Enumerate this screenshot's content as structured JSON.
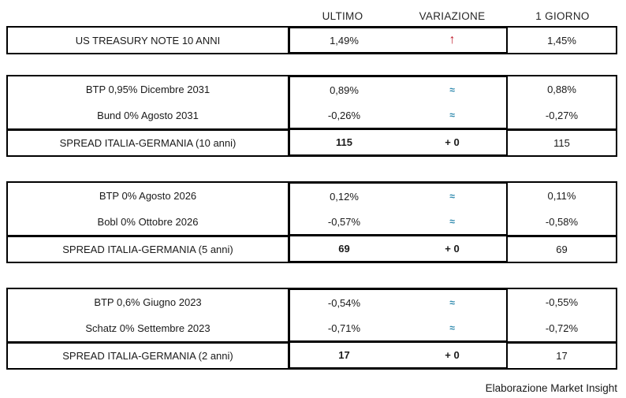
{
  "columns": {
    "ultimo": "ULTIMO",
    "variazione": "VARIAZIONE",
    "giorno": "1 GIORNO"
  },
  "glyphs": {
    "up_arrow": "↑",
    "approx": "≈"
  },
  "colors": {
    "up_arrow_red": "#C1202F",
    "approx_blue": "#2A87AC",
    "border": "#000000"
  },
  "us_treasury_row": {
    "label": "US TREASURY NOTE 10 ANNI",
    "ultimo": "1,49%",
    "giorno_prev": "1,45%"
  },
  "sections": [
    {
      "bonds": [
        {
          "label": "BTP 0,95% Dicembre 2031",
          "ultimo": "0,89%",
          "giorno_prev": "0,88%"
        },
        {
          "label": "Bund 0% Agosto 2031",
          "ultimo": "-0,26%",
          "giorno_prev": "-0,27%"
        }
      ],
      "spread": {
        "label": "SPREAD ITALIA-GERMANIA (10 anni)",
        "ultimo": "115",
        "variazione": "+ 0",
        "giorno_prev": "115"
      }
    },
    {
      "bonds": [
        {
          "label": "BTP 0% Agosto 2026",
          "ultimo": "0,12%",
          "giorno_prev": "0,11%"
        },
        {
          "label": "Bobl 0% Ottobre 2026",
          "ultimo": "-0,57%",
          "giorno_prev": "-0,58%"
        }
      ],
      "spread": {
        "label": "SPREAD ITALIA-GERMANIA (5 anni)",
        "ultimo": "69",
        "variazione": "+ 0",
        "giorno_prev": "69"
      }
    },
    {
      "bonds": [
        {
          "label": "BTP 0,6% Giugno 2023",
          "ultimo": "-0,54%",
          "giorno_prev": "-0,55%"
        },
        {
          "label": "Schatz 0% Settembre 2023",
          "ultimo": "-0,71%",
          "giorno_prev": "-0,72%"
        }
      ],
      "spread": {
        "label": "SPREAD ITALIA-GERMANIA (2 anni)",
        "ultimo": "17",
        "variazione": "+ 0",
        "giorno_prev": "17"
      }
    }
  ],
  "footer": {
    "credit": "Elaborazione Market Insight"
  }
}
